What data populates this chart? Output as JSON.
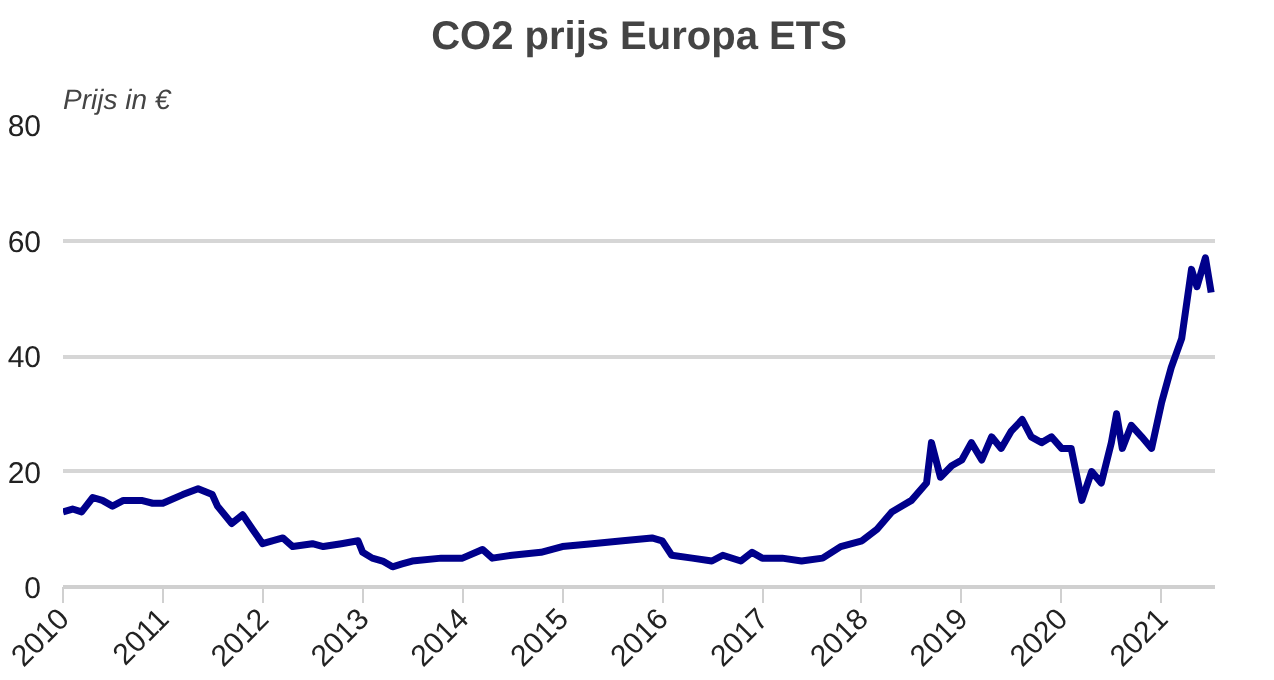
{
  "chart_data": {
    "type": "line",
    "title": "CO2 prijs Europa ETS",
    "ylabel": "Prijs in €",
    "x": [
      "2010-01-01",
      "2010-02-05",
      "2010-03-10",
      "2010-04-20",
      "2010-05-25",
      "2010-07-01",
      "2010-08-10",
      "2010-10-15",
      "2010-11-25",
      "2011-01-01",
      "2011-03-15",
      "2011-05-10",
      "2011-07-01",
      "2011-07-20",
      "2011-09-10",
      "2011-10-20",
      "2011-11-25",
      "2012-01-01",
      "2012-02-05",
      "2012-03-15",
      "2012-04-20",
      "2012-07-01",
      "2012-08-10",
      "2012-10-15",
      "2012-12-15",
      "2013-01-01",
      "2013-02-05",
      "2013-03-15",
      "2013-04-20",
      "2013-05-25",
      "2013-07-01",
      "2013-10-15",
      "2014-01-01",
      "2014-03-15",
      "2014-04-20",
      "2014-07-01",
      "2014-10-15",
      "2015-01-01",
      "2015-04-20",
      "2015-08-10",
      "2015-11-25",
      "2016-01-01",
      "2016-02-05",
      "2016-04-20",
      "2016-07-01",
      "2016-08-10",
      "2016-10-15",
      "2016-11-25",
      "2017-01-01",
      "2017-03-15",
      "2017-05-25",
      "2017-08-10",
      "2017-10-15",
      "2018-01-01",
      "2018-02-25",
      "2018-04-20",
      "2018-07-01",
      "2018-08-25",
      "2018-09-12",
      "2018-10-15",
      "2018-11-25",
      "2019-01-01",
      "2019-02-05",
      "2019-03-15",
      "2019-04-20",
      "2019-05-25",
      "2019-07-01",
      "2019-08-10",
      "2019-09-12",
      "2019-10-20",
      "2019-11-25",
      "2020-01-01",
      "2020-02-05",
      "2020-03-15",
      "2020-04-20",
      "2020-05-25",
      "2020-07-01",
      "2020-07-20",
      "2020-08-10",
      "2020-09-12",
      "2020-10-20",
      "2020-11-25",
      "2021-01-01",
      "2021-02-05",
      "2021-03-15",
      "2021-04-20",
      "2021-05-10",
      "2021-06-10",
      "2021-07-01"
    ],
    "values": [
      13,
      13.5,
      13,
      15.5,
      15,
      14,
      15,
      15,
      14.5,
      14.5,
      16,
      17,
      16,
      14,
      11,
      12.5,
      10,
      7.5,
      8,
      8.5,
      7,
      7.5,
      7,
      7.5,
      8,
      6,
      5,
      4.5,
      3.5,
      4,
      4.5,
      5,
      5,
      6.5,
      5,
      5.5,
      6,
      7,
      7.5,
      8,
      8.5,
      8,
      5.5,
      5,
      4.5,
      5.5,
      4.5,
      6,
      5,
      5,
      4.5,
      5,
      7,
      8,
      10,
      13,
      15,
      18,
      25,
      19,
      21,
      22,
      25,
      22,
      26,
      24,
      27,
      29,
      26,
      25,
      26,
      24,
      24,
      15,
      20,
      18,
      25,
      30,
      24,
      28,
      26,
      24,
      32,
      38,
      43,
      55,
      52,
      57,
      51
    ],
    "color": "#00008b",
    "xlim": [
      "2010-01-01",
      "2021-07-15"
    ],
    "xticks": [
      {
        "value": "2010-01-01",
        "label": "2010"
      },
      {
        "value": "2011-01-01",
        "label": "2011"
      },
      {
        "value": "2012-01-01",
        "label": "2012"
      },
      {
        "value": "2013-01-01",
        "label": "2013"
      },
      {
        "value": "2014-01-01",
        "label": "2014"
      },
      {
        "value": "2015-01-01",
        "label": "2015"
      },
      {
        "value": "2016-01-01",
        "label": "2016"
      },
      {
        "value": "2017-01-01",
        "label": "2017"
      },
      {
        "value": "2018-01-01",
        "label": "2018"
      },
      {
        "value": "2019-01-01",
        "label": "2019"
      },
      {
        "value": "2020-01-01",
        "label": "2020"
      },
      {
        "value": "2021-01-01",
        "label": "2021"
      }
    ],
    "ylim": [
      0,
      80
    ],
    "yticks": [
      0,
      20,
      40,
      60,
      80
    ],
    "grid": "y",
    "line_style": "solid"
  }
}
